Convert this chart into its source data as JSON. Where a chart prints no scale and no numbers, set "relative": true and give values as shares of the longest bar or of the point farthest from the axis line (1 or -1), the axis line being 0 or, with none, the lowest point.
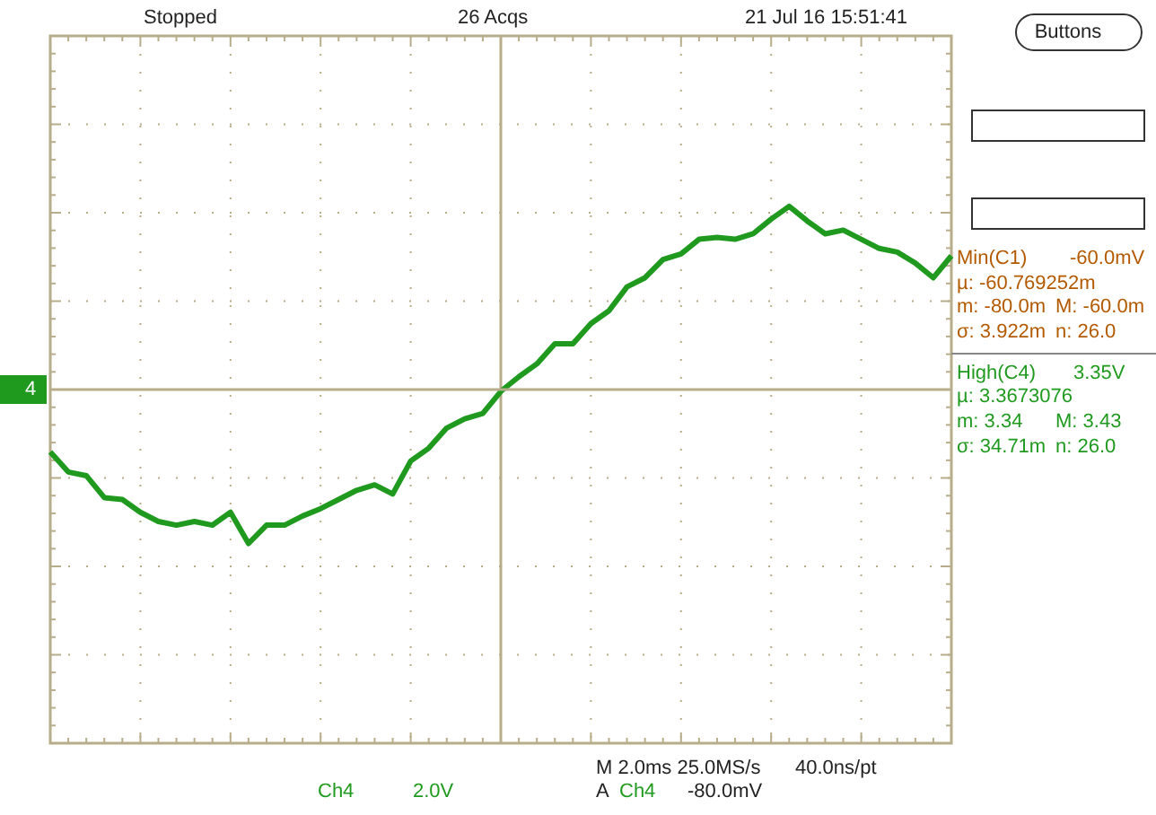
{
  "chart_data": {
    "type": "line",
    "relative": true,
    "grid": true,
    "ref_lines": [
      {
        "axis": "y",
        "value": 0,
        "color": "#b8ad8a"
      }
    ],
    "marker": "none",
    "line_style": "solid",
    "categories": [
      null,
      null,
      null,
      null,
      null,
      null,
      null,
      null,
      null,
      null,
      null,
      null,
      null,
      null,
      null,
      null,
      null,
      null,
      null,
      null,
      null,
      null,
      null,
      null,
      null,
      null,
      null,
      null,
      null,
      null,
      null,
      null,
      null,
      null,
      null,
      null,
      null,
      null,
      null,
      null,
      null,
      null,
      null,
      null,
      null,
      null,
      null,
      null,
      null,
      null,
      null
    ],
    "series": [
      {
        "color": "#1f9a1f",
        "values": [
          -0.34,
          -0.45,
          -0.47,
          -0.59,
          -0.6,
          -0.67,
          -0.72,
          -0.74,
          -0.72,
          -0.74,
          -0.67,
          -0.84,
          -0.74,
          -0.74,
          -0.69,
          -0.65,
          -0.6,
          -0.55,
          -0.52,
          -0.57,
          -0.39,
          -0.32,
          -0.21,
          -0.16,
          -0.13,
          -0.01,
          0.07,
          0.14,
          0.25,
          0.25,
          0.36,
          0.43,
          0.56,
          0.61,
          0.71,
          0.74,
          0.82,
          0.83,
          0.82,
          0.85,
          0.93,
          1,
          0.92,
          0.85,
          0.87,
          0.82,
          0.77,
          0.75,
          0.69,
          0.61,
          0.73
        ]
      }
    ],
    "annotations": [
      "Stopped",
      "26 Acqs",
      "21 Jul 16 15:51:41",
      "Buttons",
      "4",
      "Min(C1)",
      "-60.0mV",
      "µ: -60.769252m",
      "m: -80.0m",
      "M: -60.0m",
      "σ: 3.922m",
      "n: 26.0",
      "High(C4)",
      "3.35V",
      "µ: 3.3673076",
      "m: 3.34",
      "M: 3.43",
      "σ: 34.71m",
      "n: 26.0",
      "Ch4",
      "2.0V",
      "M 2.0ms 25.0MS/s",
      "40.0ns/pt",
      "A",
      "Ch4",
      "-80.0mV"
    ]
  }
}
